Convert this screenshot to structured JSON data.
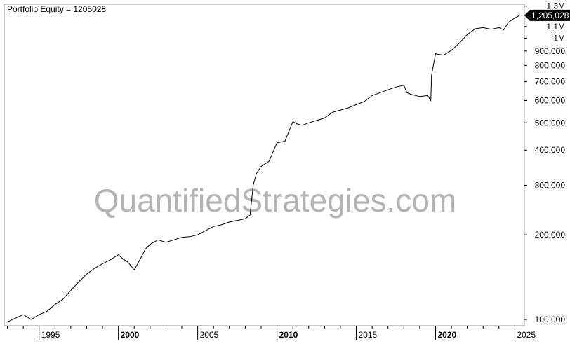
{
  "chart_data": {
    "type": "line",
    "title": "Portfolio Equity = 1205028",
    "watermark": "QuantifiedStrategies.com",
    "last_value_label": "1,205,028",
    "y_scale": "log",
    "ylim": [
      95000,
      1320000
    ],
    "xlim": [
      1992.8,
      2025.6
    ],
    "yticks": [
      {
        "value": 100000,
        "label": "100,000"
      },
      {
        "value": 200000,
        "label": "200,000"
      },
      {
        "value": 300000,
        "label": "300,000"
      },
      {
        "value": 400000,
        "label": "400,000"
      },
      {
        "value": 500000,
        "label": "500,000"
      },
      {
        "value": 600000,
        "label": "600,000"
      },
      {
        "value": 700000,
        "label": "700,000"
      },
      {
        "value": 800000,
        "label": "800,000"
      },
      {
        "value": 900000,
        "label": "900,000"
      },
      {
        "value": 1000000,
        "label": "1M"
      },
      {
        "value": 1100000,
        "label": "1.1M"
      },
      {
        "value": 1300000,
        "label": "1.3M"
      }
    ],
    "xticks": [
      {
        "value": 1995,
        "label": "1995",
        "major": false
      },
      {
        "value": 2000,
        "label": "2000",
        "major": true
      },
      {
        "value": 2005,
        "label": "2005",
        "major": false
      },
      {
        "value": 2010,
        "label": "2010",
        "major": true
      },
      {
        "value": 2015,
        "label": "2015",
        "major": false
      },
      {
        "value": 2020,
        "label": "2020",
        "major": true
      },
      {
        "value": 2025,
        "label": "2025",
        "major": false
      }
    ],
    "series": [
      {
        "x": [
          1993.0,
          1993.5,
          1994.0,
          1994.5,
          1995.0,
          1995.5,
          1996.0,
          1996.5,
          1997.0,
          1997.5,
          1998.0,
          1998.5,
          1999.0,
          1999.5,
          2000.0,
          2000.3,
          2000.6,
          2001.0,
          2001.4,
          2001.7,
          2002.0,
          2002.5,
          2003.0,
          2003.5,
          2004.0,
          2004.5,
          2005.0,
          2005.5,
          2006.0,
          2006.5,
          2007.0,
          2007.5,
          2008.0,
          2008.3,
          2008.5,
          2008.7,
          2009.0,
          2009.5,
          2010.0,
          2010.5,
          2011.0,
          2011.3,
          2011.6,
          2012.0,
          2012.5,
          2013.0,
          2013.5,
          2014.0,
          2014.5,
          2015.0,
          2015.5,
          2016.0,
          2016.5,
          2017.0,
          2017.5,
          2018.0,
          2018.2,
          2018.5,
          2019.0,
          2019.5,
          2019.7,
          2019.75,
          2020.0,
          2020.5,
          2021.0,
          2021.5,
          2022.0,
          2022.5,
          2023.0,
          2023.5,
          2024.0,
          2024.3,
          2024.6,
          2025.0,
          2025.3
        ],
        "y": [
          98000,
          101000,
          104000,
          100000,
          104000,
          107000,
          113000,
          118000,
          127000,
          136000,
          145000,
          152000,
          158000,
          163000,
          170000,
          164000,
          160000,
          150000,
          165000,
          178000,
          185000,
          192000,
          188000,
          192000,
          196000,
          197000,
          200000,
          207000,
          214000,
          217000,
          222000,
          225000,
          228000,
          235000,
          300000,
          330000,
          350000,
          365000,
          425000,
          430000,
          505000,
          495000,
          490000,
          500000,
          510000,
          520000,
          545000,
          555000,
          565000,
          580000,
          595000,
          625000,
          640000,
          655000,
          670000,
          680000,
          640000,
          630000,
          620000,
          625000,
          600000,
          740000,
          880000,
          870000,
          905000,
          960000,
          1030000,
          1080000,
          1090000,
          1075000,
          1090000,
          1070000,
          1140000,
          1180000,
          1205028
        ]
      }
    ]
  }
}
